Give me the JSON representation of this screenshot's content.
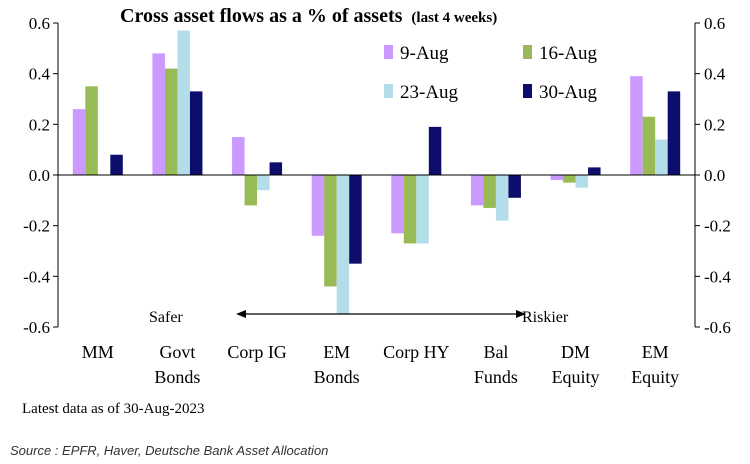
{
  "chart_data": {
    "type": "bar",
    "title": "Cross asset flows as a % of assets",
    "title_suffix": "(last 4 weeks)",
    "categories": [
      [
        "MM"
      ],
      [
        "Govt",
        "Bonds"
      ],
      [
        "Corp IG"
      ],
      [
        "EM",
        "Bonds"
      ],
      [
        "Corp HY"
      ],
      [
        "Bal",
        "Funds"
      ],
      [
        "DM",
        "Equity"
      ],
      [
        "EM",
        "Equity"
      ]
    ],
    "series": [
      {
        "name": "9-Aug",
        "color": "#cc99ff",
        "values": [
          0.26,
          0.48,
          0.15,
          -0.24,
          -0.23,
          -0.12,
          -0.02,
          0.39
        ]
      },
      {
        "name": "16-Aug",
        "color": "#99bb55",
        "values": [
          0.35,
          0.42,
          -0.12,
          -0.44,
          -0.27,
          -0.13,
          -0.03,
          0.23
        ]
      },
      {
        "name": "23-Aug",
        "color": "#b3dde8",
        "values": [
          0.0,
          0.57,
          -0.06,
          -0.55,
          -0.27,
          -0.18,
          -0.05,
          0.14
        ]
      },
      {
        "name": "30-Aug",
        "color": "#0d0d6b",
        "values": [
          0.08,
          0.33,
          0.05,
          -0.35,
          0.19,
          -0.09,
          0.03,
          0.33
        ]
      }
    ],
    "ylim": [
      -0.6,
      0.6
    ],
    "yticks": [
      "0.6",
      "0.4",
      "0.2",
      "0.0",
      "-0.2",
      "-0.4",
      "-0.6"
    ],
    "ytick_values": [
      0.6,
      0.4,
      0.2,
      0.0,
      -0.2,
      -0.4,
      -0.6
    ],
    "grid": false,
    "legend_position": "top-right",
    "annotations": {
      "safer": "Safer",
      "riskier": "Riskier",
      "latest": "Latest data as of 30-Aug-2023"
    },
    "source": "Source : EPFR, Haver, Deutsche Bank Asset Allocation"
  }
}
